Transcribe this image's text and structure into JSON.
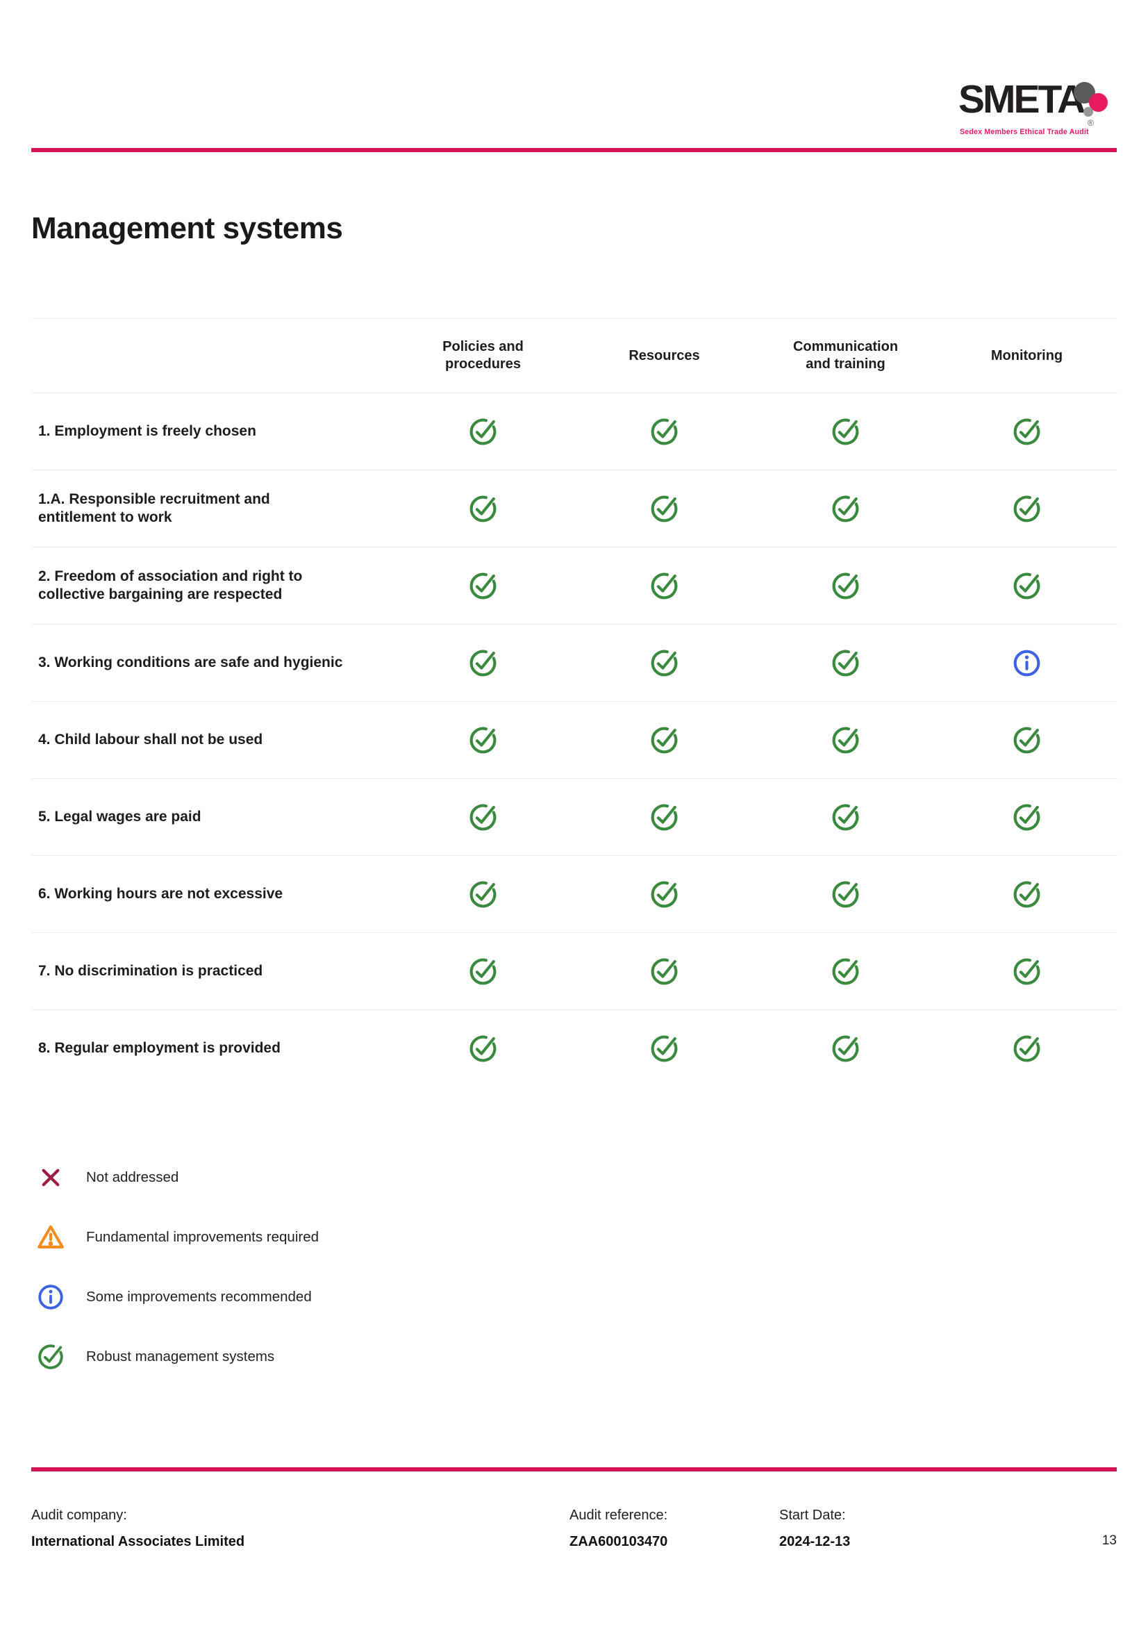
{
  "colors": {
    "pink": "#d6114f",
    "green": "#3a8a3e",
    "blue": "#3d63e3",
    "orange": "#f68b1e",
    "crimson": "#9e1b42"
  },
  "logo": {
    "wordmark": "SMETA",
    "registered": "®",
    "tagline": "Sedex Members Ethical Trade Audit"
  },
  "page_title": "Management systems",
  "table": {
    "columns": [
      "Policies and\nprocedures",
      "Resources",
      "Communication\nand training",
      "Monitoring"
    ],
    "rows": [
      {
        "label": "1. Employment is freely chosen",
        "cells": [
          "check",
          "check",
          "check",
          "check"
        ]
      },
      {
        "label": "1.A. Responsible recruitment and entitlement to work",
        "cells": [
          "check",
          "check",
          "check",
          "check"
        ]
      },
      {
        "label": "2. Freedom of association and right to collective bargaining are respected",
        "cells": [
          "check",
          "check",
          "check",
          "check"
        ]
      },
      {
        "label": "3. Working conditions are safe and hygienic",
        "cells": [
          "check",
          "check",
          "check",
          "info"
        ]
      },
      {
        "label": "4. Child labour shall not be used",
        "cells": [
          "check",
          "check",
          "check",
          "check"
        ]
      },
      {
        "label": "5. Legal wages are paid",
        "cells": [
          "check",
          "check",
          "check",
          "check"
        ]
      },
      {
        "label": "6. Working hours are not excessive",
        "cells": [
          "check",
          "check",
          "check",
          "check"
        ]
      },
      {
        "label": "7. No discrimination is practiced",
        "cells": [
          "check",
          "check",
          "check",
          "check"
        ]
      },
      {
        "label": "8. Regular employment is provided",
        "cells": [
          "check",
          "check",
          "check",
          "check"
        ]
      }
    ]
  },
  "legend": {
    "items": [
      {
        "icon": "x",
        "label": "Not addressed"
      },
      {
        "icon": "warning",
        "label": "Fundamental improvements required"
      },
      {
        "icon": "info",
        "label": "Some improvements recommended"
      },
      {
        "icon": "check",
        "label": "Robust management systems"
      }
    ]
  },
  "footer": {
    "audit_company_label": "Audit company:",
    "audit_company": "International Associates Limited",
    "audit_reference_label": "Audit reference:",
    "audit_reference": "ZAA600103470",
    "start_date_label": "Start Date:",
    "start_date": "2024-12-13",
    "page_number": "13"
  }
}
